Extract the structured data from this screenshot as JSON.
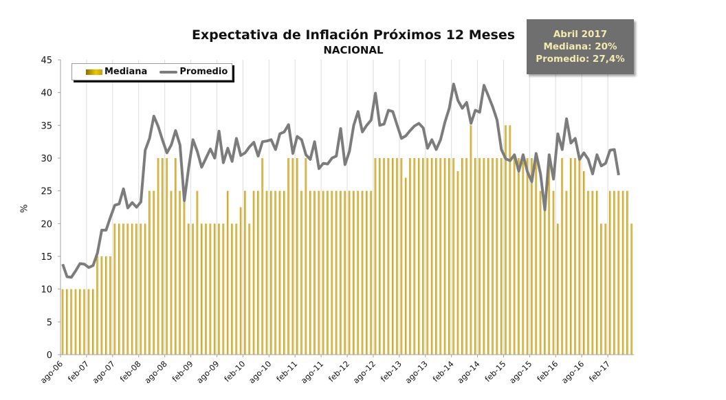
{
  "chart_data": {
    "type": "bar+line",
    "title": "Expectativa de Inflación Próximos 12 Meses",
    "subtitle": "NACIONAL",
    "xlabel": "",
    "ylabel": "%",
    "ylim": [
      0,
      45
    ],
    "yticks": [
      0,
      5,
      10,
      15,
      20,
      25,
      30,
      35,
      40,
      45
    ],
    "grid": "vertical",
    "legend_position": "top-left",
    "x_start": "ago-06",
    "x_end": "abr-17",
    "xtick_labels": [
      "ago-06",
      "feb-07",
      "ago-07",
      "feb-08",
      "ago-08",
      "feb-09",
      "ago-09",
      "feb-10",
      "ago-10",
      "feb-11",
      "ago-11",
      "feb-12",
      "ago-12",
      "feb-13",
      "ago-13",
      "feb-14",
      "ago-14",
      "feb-15",
      "ago-15",
      "feb-16",
      "ago-16",
      "feb-17"
    ],
    "series": [
      {
        "name": "Mediana",
        "kind": "bar",
        "color": "#d9b62e",
        "values": [
          10,
          10,
          10,
          10,
          10,
          10,
          10,
          10,
          15,
          15,
          15,
          15,
          20,
          20,
          20,
          20,
          20,
          20,
          20,
          20,
          25,
          25,
          30,
          30,
          30,
          25,
          30,
          25,
          25,
          20,
          20,
          25,
          20,
          20,
          20,
          20,
          20,
          20,
          25,
          20,
          20,
          22.5,
          25,
          20,
          25,
          25,
          30,
          25,
          25,
          25,
          25,
          25,
          30,
          30,
          30,
          25,
          30,
          25,
          25,
          25,
          25,
          25,
          25,
          25,
          25,
          25,
          25,
          25,
          25,
          25,
          25,
          25,
          30,
          30,
          30,
          30,
          30,
          30,
          30,
          27,
          30,
          30,
          30,
          30,
          30,
          30,
          30,
          30,
          30,
          30,
          30,
          28,
          30,
          30,
          35,
          30,
          30,
          30,
          30,
          30,
          30,
          30,
          35,
          35,
          30,
          30,
          30,
          30,
          30,
          30,
          25,
          22,
          30,
          25,
          20,
          30,
          25,
          30,
          30,
          30,
          28,
          25,
          25,
          25,
          20,
          20,
          25,
          25,
          25,
          25,
          25,
          20
        ]
      },
      {
        "name": "Promedio",
        "kind": "line",
        "color": "#7c7c7c",
        "values": [
          13.8,
          11.9,
          11.8,
          12.8,
          13.9,
          13.8,
          13.3,
          13.6,
          15.5,
          19,
          19,
          21,
          22.8,
          23,
          25.3,
          22.4,
          23.2,
          22.5,
          23.3,
          31.2,
          33,
          36.4,
          34.8,
          32.7,
          30.8,
          32,
          34.2,
          32,
          23.5,
          28.5,
          32.8,
          31,
          28.6,
          30,
          31.4,
          30,
          34.1,
          29.3,
          31.5,
          29.5,
          33,
          30.4,
          30.8,
          31.7,
          32.4,
          30.3,
          32.5,
          32.6,
          32.8,
          31.3,
          33.7,
          34,
          35.1,
          30.7,
          33.3,
          32.8,
          30.5,
          29.8,
          32.5,
          28.4,
          29.2,
          29.1,
          30,
          30.3,
          34.5,
          29,
          31,
          35,
          37.1,
          34,
          35,
          35.8,
          39.9,
          35,
          35.2,
          37.3,
          37.1,
          35,
          33,
          33.4,
          34.2,
          34.9,
          35.3,
          34.6,
          31.5,
          32.8,
          31.3,
          32.8,
          35.5,
          37.6,
          41.3,
          38.8,
          37.6,
          38.5,
          35.3,
          37.3,
          37,
          41.1,
          39.5,
          37.8,
          35.8,
          31.3,
          29.9,
          29.6,
          30.5,
          28,
          30.5,
          27.9,
          26.4,
          30.7,
          27.6,
          22.1,
          30.5,
          26.8,
          33.7,
          31.3,
          36,
          32.3,
          33,
          29.8,
          30.8,
          29.8,
          27.6,
          30.5,
          28.8,
          29.2,
          31.2,
          31.3,
          27.4
        ]
      }
    ]
  },
  "legend": {
    "items": [
      {
        "label": "Mediana"
      },
      {
        "label": "Promedio"
      }
    ]
  },
  "infobox": {
    "line1": "Abril 2017",
    "line2": "Mediana: 20%",
    "line3": "Promedio: 27,4%"
  }
}
